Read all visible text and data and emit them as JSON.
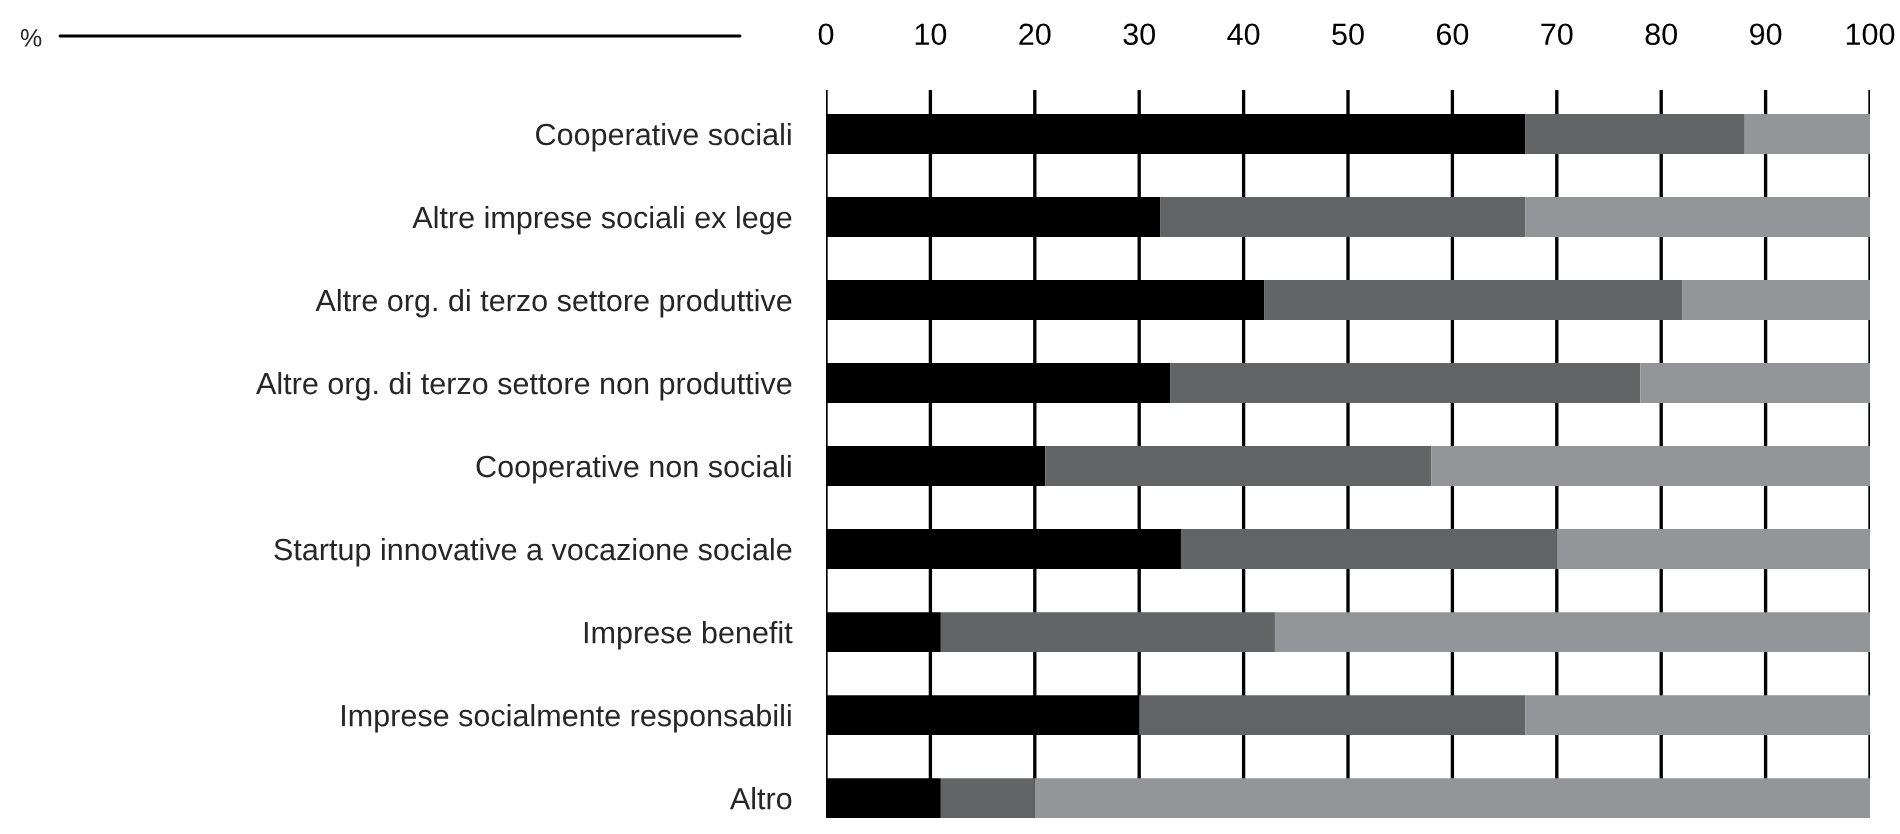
{
  "chart_data": {
    "type": "bar",
    "orientation": "horizontal",
    "stacked": true,
    "annotations": [
      "%"
    ],
    "categories": [
      "Cooperative sociali",
      "Altre imprese sociali ex lege",
      "Altre org. di terzo settore produttive",
      "Altre org. di terzo settore non produttive",
      "Cooperative non sociali",
      "Startup innovative a vocazione sociale",
      "Imprese benefit",
      "Imprese socialmente responsabili",
      "Altro"
    ],
    "series": [
      {
        "color": "#000000",
        "values": [
          67,
          32,
          42,
          33,
          21,
          34,
          11,
          30,
          11
        ]
      },
      {
        "color": "#636466",
        "values": [
          21,
          35,
          40,
          45,
          37,
          36,
          32,
          37,
          9
        ]
      },
      {
        "color": "#939598",
        "values": [
          12,
          33,
          18,
          22,
          42,
          30,
          57,
          33,
          80
        ]
      }
    ],
    "xlim": [
      0,
      100
    ],
    "xticks": [
      0,
      10,
      20,
      30,
      40,
      50,
      60,
      70,
      80,
      90,
      100
    ],
    "grid": "x",
    "legend": false
  }
}
